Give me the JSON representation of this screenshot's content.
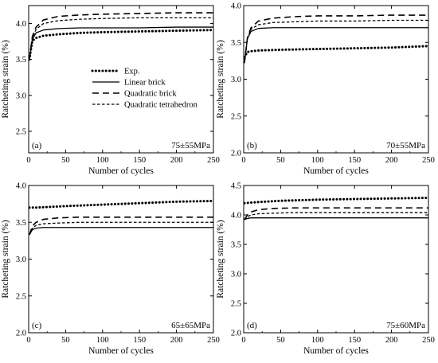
{
  "chart_data": [
    {
      "type": "line",
      "panel_label": "(a)",
      "annotation": "75±55MPa",
      "xlabel": "Number of cycles",
      "ylabel": "Ratcheting strain (%)",
      "xlim": [
        0,
        250
      ],
      "ylim": [
        2.2,
        4.25
      ],
      "x_ticks": [
        0,
        50,
        100,
        150,
        200,
        250
      ],
      "y_ticks": [
        2.5,
        3.0,
        3.5,
        4.0
      ],
      "legend_position": "center-right",
      "series": [
        {
          "name": "Exp.",
          "style": "dotted",
          "x": [
            1,
            5,
            10,
            20,
            40,
            70,
            100,
            150,
            200,
            250
          ],
          "y": [
            3.5,
            3.76,
            3.8,
            3.83,
            3.85,
            3.87,
            3.88,
            3.89,
            3.9,
            3.91
          ]
        },
        {
          "name": "Linear brick",
          "style": "solid",
          "x": [
            1,
            5,
            10,
            20,
            40,
            70,
            100,
            150,
            200,
            250
          ],
          "y": [
            3.5,
            3.78,
            3.87,
            3.91,
            3.93,
            3.94,
            3.94,
            3.94,
            3.95,
            3.95
          ]
        },
        {
          "name": "Quadratic brick",
          "style": "dashed",
          "x": [
            1,
            5,
            10,
            20,
            40,
            70,
            100,
            150,
            200,
            250
          ],
          "y": [
            3.5,
            3.82,
            3.95,
            4.05,
            4.1,
            4.12,
            4.13,
            4.14,
            4.15,
            4.15
          ]
        },
        {
          "name": "Quadratic tetrahedron",
          "style": "short-dashed",
          "x": [
            1,
            5,
            10,
            20,
            40,
            70,
            100,
            150,
            200,
            250
          ],
          "y": [
            3.5,
            3.8,
            3.92,
            4.0,
            4.04,
            4.06,
            4.07,
            4.08,
            4.08,
            4.08
          ]
        }
      ]
    },
    {
      "type": "line",
      "panel_label": "(b)",
      "annotation": "70±55MPa",
      "xlabel": "Number of cycles",
      "ylabel": "Ratcheting strain (%)",
      "xlim": [
        0,
        250
      ],
      "ylim": [
        2.0,
        4.0
      ],
      "x_ticks": [
        0,
        50,
        100,
        150,
        200,
        250
      ],
      "y_ticks": [
        2.0,
        2.5,
        3.0,
        3.5,
        4.0
      ],
      "series": [
        {
          "name": "Exp.",
          "style": "dotted",
          "x": [
            1,
            5,
            10,
            20,
            50,
            100,
            150,
            200,
            250
          ],
          "y": [
            3.3,
            3.37,
            3.38,
            3.39,
            3.4,
            3.41,
            3.42,
            3.43,
            3.45
          ]
        },
        {
          "name": "Linear brick",
          "style": "solid",
          "x": [
            1,
            5,
            10,
            20,
            40,
            70,
            100,
            150,
            200,
            250
          ],
          "y": [
            3.22,
            3.55,
            3.65,
            3.69,
            3.7,
            3.7,
            3.7,
            3.7,
            3.7,
            3.7
          ]
        },
        {
          "name": "Quadratic brick",
          "style": "dashed",
          "x": [
            1,
            5,
            10,
            20,
            40,
            70,
            100,
            150,
            200,
            250
          ],
          "y": [
            3.22,
            3.56,
            3.7,
            3.79,
            3.83,
            3.85,
            3.86,
            3.86,
            3.87,
            3.87
          ]
        },
        {
          "name": "Quadratic tetrahedron",
          "style": "short-dashed",
          "x": [
            1,
            5,
            10,
            20,
            40,
            70,
            100,
            150,
            200,
            250
          ],
          "y": [
            3.22,
            3.55,
            3.68,
            3.74,
            3.77,
            3.78,
            3.79,
            3.79,
            3.8,
            3.8
          ]
        }
      ]
    },
    {
      "type": "line",
      "panel_label": "(c)",
      "annotation": "65±65MPa",
      "xlabel": "Number of cycles",
      "ylabel": "Ratcheting strain (%)",
      "xlim": [
        0,
        250
      ],
      "ylim": [
        2.0,
        4.0
      ],
      "x_ticks": [
        0,
        50,
        100,
        150,
        200,
        250
      ],
      "y_ticks": [
        2.0,
        2.5,
        3.0,
        3.5,
        4.0
      ],
      "series": [
        {
          "name": "Exp.",
          "style": "dotted",
          "x": [
            1,
            10,
            30,
            50,
            100,
            150,
            200,
            250
          ],
          "y": [
            3.7,
            3.7,
            3.71,
            3.72,
            3.74,
            3.76,
            3.78,
            3.79
          ]
        },
        {
          "name": "Linear brick",
          "style": "solid",
          "x": [
            1,
            5,
            10,
            20,
            40,
            70,
            100,
            150,
            200,
            250
          ],
          "y": [
            3.33,
            3.4,
            3.42,
            3.43,
            3.43,
            3.43,
            3.43,
            3.43,
            3.43,
            3.43
          ]
        },
        {
          "name": "Quadratic brick",
          "style": "dashed",
          "x": [
            1,
            5,
            10,
            20,
            40,
            70,
            100,
            150,
            200,
            250
          ],
          "y": [
            3.33,
            3.45,
            3.5,
            3.54,
            3.56,
            3.57,
            3.57,
            3.57,
            3.57,
            3.57
          ]
        },
        {
          "name": "Quadratic tetrahedron",
          "style": "short-dashed",
          "x": [
            1,
            5,
            10,
            20,
            40,
            70,
            100,
            150,
            200,
            250
          ],
          "y": [
            3.33,
            3.42,
            3.46,
            3.48,
            3.49,
            3.5,
            3.5,
            3.5,
            3.5,
            3.5
          ]
        }
      ]
    },
    {
      "type": "line",
      "panel_label": "(d)",
      "annotation": "75±60MPa",
      "xlabel": "Number of cycles",
      "ylabel": "Ratcheting strain (%)",
      "xlim": [
        0,
        250
      ],
      "ylim": [
        2.0,
        4.5
      ],
      "x_ticks": [
        0,
        50,
        100,
        150,
        200,
        250
      ],
      "y_ticks": [
        2.0,
        2.5,
        3.0,
        3.5,
        4.0,
        4.5
      ],
      "series": [
        {
          "name": "Exp.",
          "style": "dotted",
          "x": [
            1,
            10,
            50,
            100,
            150,
            200,
            250
          ],
          "y": [
            4.2,
            4.21,
            4.24,
            4.26,
            4.27,
            4.28,
            4.29
          ]
        },
        {
          "name": "Linear brick",
          "style": "solid",
          "x": [
            1,
            5,
            10,
            20,
            40,
            70,
            100,
            150,
            200,
            250
          ],
          "y": [
            3.92,
            3.94,
            3.95,
            3.95,
            3.95,
            3.95,
            3.95,
            3.95,
            3.95,
            3.95
          ]
        },
        {
          "name": "Quadratic brick",
          "style": "dashed",
          "x": [
            1,
            5,
            10,
            20,
            40,
            70,
            100,
            150,
            200,
            250
          ],
          "y": [
            3.92,
            4.0,
            4.05,
            4.09,
            4.11,
            4.12,
            4.12,
            4.12,
            4.12,
            4.12
          ]
        },
        {
          "name": "Quadratic tetrahedron",
          "style": "short-dashed",
          "x": [
            1,
            5,
            10,
            20,
            40,
            70,
            100,
            150,
            200,
            250
          ],
          "y": [
            3.92,
            3.97,
            4.0,
            4.02,
            4.03,
            4.04,
            4.04,
            4.04,
            4.04,
            4.04
          ]
        }
      ]
    }
  ]
}
